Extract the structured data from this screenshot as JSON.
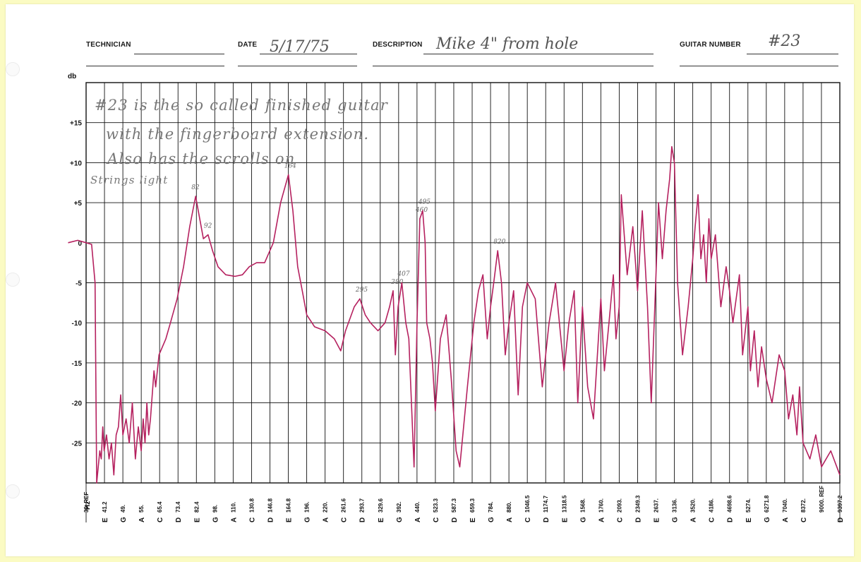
{
  "form": {
    "technician_label": "TECHNICIAN",
    "technician_value": "",
    "date_label": "DATE",
    "date_value": "5/17/75",
    "description_label": "DESCRIPTION",
    "description_value": "Mike 4\" from hole",
    "guitar_number_label": "GUITAR NUMBER",
    "guitar_number_value": "#23"
  },
  "notes": [
    "#23 is the so called finished guitar",
    "with the fingerboard extension.",
    "Also has the scrolls on",
    "Strings light"
  ],
  "colors": {
    "trace": "#b5215f",
    "grid": "#111111",
    "ink": "#777777",
    "paper": "#fbfbc3"
  },
  "chart_data": {
    "type": "line",
    "ylabel": "db",
    "xlabel": "Hz",
    "ylim": [
      -30,
      20
    ],
    "y_ticks": [
      15,
      10,
      5,
      0,
      -5,
      -10,
      -15,
      -20,
      -25
    ],
    "y_tick_labels": [
      "+15",
      "+10",
      "+5",
      "0",
      "-5",
      "-10",
      "-15",
      "-20",
      "-25"
    ],
    "x_ticks": [
      {
        "freq": "30. REF",
        "note": ""
      },
      {
        "freq": "41.2",
        "note": "E"
      },
      {
        "freq": "49.",
        "note": "G"
      },
      {
        "freq": "55.",
        "note": "A"
      },
      {
        "freq": "65.4",
        "note": "C"
      },
      {
        "freq": "73.4",
        "note": "D"
      },
      {
        "freq": "82.4",
        "note": "E"
      },
      {
        "freq": "98.",
        "note": "G"
      },
      {
        "freq": "110.",
        "note": "A"
      },
      {
        "freq": "130.8",
        "note": "C"
      },
      {
        "freq": "146.8",
        "note": "D"
      },
      {
        "freq": "164.8",
        "note": "E"
      },
      {
        "freq": "196.",
        "note": "G"
      },
      {
        "freq": "220.",
        "note": "A"
      },
      {
        "freq": "261.6",
        "note": "C"
      },
      {
        "freq": "293.7",
        "note": "D"
      },
      {
        "freq": "329.6",
        "note": "E"
      },
      {
        "freq": "392.",
        "note": "G"
      },
      {
        "freq": "440.",
        "note": "A"
      },
      {
        "freq": "523.3",
        "note": "C"
      },
      {
        "freq": "587.3",
        "note": "D"
      },
      {
        "freq": "659.3",
        "note": "E"
      },
      {
        "freq": "784.",
        "note": "G"
      },
      {
        "freq": "880.",
        "note": "A"
      },
      {
        "freq": "1046.5",
        "note": "C"
      },
      {
        "freq": "1174.7",
        "note": "D"
      },
      {
        "freq": "1318.5",
        "note": "E"
      },
      {
        "freq": "1568.",
        "note": "G"
      },
      {
        "freq": "1760.",
        "note": "A"
      },
      {
        "freq": "2093.",
        "note": "C"
      },
      {
        "freq": "2349.3",
        "note": "D"
      },
      {
        "freq": "2637.",
        "note": "E"
      },
      {
        "freq": "3136.",
        "note": "G"
      },
      {
        "freq": "3520.",
        "note": "A"
      },
      {
        "freq": "4186.",
        "note": "C"
      },
      {
        "freq": "4698.6",
        "note": "D"
      },
      {
        "freq": "5274.",
        "note": "E"
      },
      {
        "freq": "6271.8",
        "note": "G"
      },
      {
        "freq": "7040.",
        "note": "A"
      },
      {
        "freq": "8372.",
        "note": "C"
      },
      {
        "freq": "9000. REF",
        "note": ""
      },
      {
        "freq": "9397.2",
        "note": "D"
      }
    ],
    "series": [
      {
        "values": [
          [
            22,
            0
          ],
          [
            26,
            0.3
          ],
          [
            30,
            0
          ],
          [
            33,
            -0.2
          ],
          [
            35,
            -5
          ],
          [
            36,
            -30
          ],
          [
            37,
            -28
          ],
          [
            38,
            -26
          ],
          [
            39,
            -27
          ],
          [
            40,
            -23
          ],
          [
            41,
            -26
          ],
          [
            42,
            -24
          ],
          [
            43,
            -27
          ],
          [
            44,
            -25
          ],
          [
            45,
            -29
          ],
          [
            46,
            -24
          ],
          [
            47,
            -23
          ],
          [
            48,
            -19
          ],
          [
            49,
            -24
          ],
          [
            50,
            -22
          ],
          [
            51,
            -25
          ],
          [
            52,
            -20
          ],
          [
            53,
            -27
          ],
          [
            54,
            -23
          ],
          [
            55,
            -26
          ],
          [
            56,
            -22
          ],
          [
            57,
            -25
          ],
          [
            58,
            -20
          ],
          [
            59,
            -24
          ],
          [
            60,
            -22
          ],
          [
            61,
            -19
          ],
          [
            62,
            -16
          ],
          [
            63,
            -18
          ],
          [
            65,
            -14
          ],
          [
            68,
            -12
          ],
          [
            70,
            -10
          ],
          [
            73,
            -7
          ],
          [
            76,
            -3
          ],
          [
            79,
            2
          ],
          [
            82,
            5.8
          ],
          [
            85,
            3
          ],
          [
            88,
            0.5
          ],
          [
            92,
            1
          ],
          [
            96,
            -1
          ],
          [
            100,
            -3
          ],
          [
            105,
            -4
          ],
          [
            112,
            -4.2
          ],
          [
            120,
            -4
          ],
          [
            128,
            -3
          ],
          [
            135,
            -2.5
          ],
          [
            142,
            -2.5
          ],
          [
            150,
            0
          ],
          [
            157,
            5
          ],
          [
            165,
            8.5
          ],
          [
            172,
            4
          ],
          [
            180,
            -3
          ],
          [
            188,
            -6
          ],
          [
            196,
            -9
          ],
          [
            206,
            -10.5
          ],
          [
            220,
            -11
          ],
          [
            240,
            -12
          ],
          [
            255,
            -13.5
          ],
          [
            265,
            -11
          ],
          [
            280,
            -8
          ],
          [
            290,
            -7
          ],
          [
            300,
            -9
          ],
          [
            310,
            -10
          ],
          [
            325,
            -11
          ],
          [
            345,
            -10
          ],
          [
            360,
            -8
          ],
          [
            372,
            -6
          ],
          [
            380,
            -14
          ],
          [
            390,
            -8
          ],
          [
            400,
            -5
          ],
          [
            410,
            -10
          ],
          [
            418,
            -12
          ],
          [
            432,
            -28
          ],
          [
            440,
            -10
          ],
          [
            452,
            3
          ],
          [
            464,
            4
          ],
          [
            475,
            0
          ],
          [
            482,
            -10
          ],
          [
            497,
            -12
          ],
          [
            509,
            -15
          ],
          [
            523,
            -21
          ],
          [
            540,
            -12
          ],
          [
            560,
            -9
          ],
          [
            578,
            -17
          ],
          [
            596,
            -26
          ],
          [
            610,
            -28
          ],
          [
            640,
            -18
          ],
          [
            670,
            -10
          ],
          [
            700,
            -6
          ],
          [
            730,
            -4
          ],
          [
            760,
            -12
          ],
          [
            784,
            -8
          ],
          [
            800,
            -5
          ],
          [
            820,
            -1
          ],
          [
            840,
            -5
          ],
          [
            860,
            -14
          ],
          [
            880,
            -10
          ],
          [
            920,
            -6
          ],
          [
            960,
            -19
          ],
          [
            1000,
            -8
          ],
          [
            1046,
            -5
          ],
          [
            1100,
            -7
          ],
          [
            1150,
            -18
          ],
          [
            1200,
            -10
          ],
          [
            1250,
            -5
          ],
          [
            1318,
            -16
          ],
          [
            1380,
            -10
          ],
          [
            1450,
            -6
          ],
          [
            1500,
            -20
          ],
          [
            1568,
            -8
          ],
          [
            1620,
            -18
          ],
          [
            1680,
            -22
          ],
          [
            1760,
            -7
          ],
          [
            1820,
            -16
          ],
          [
            1900,
            -10
          ],
          [
            1980,
            -4
          ],
          [
            2030,
            -12
          ],
          [
            2093,
            -8
          ],
          [
            2120,
            6
          ],
          [
            2200,
            -4
          ],
          [
            2280,
            2
          ],
          [
            2349,
            -6
          ],
          [
            2420,
            4
          ],
          [
            2500,
            -8
          ],
          [
            2560,
            -20
          ],
          [
            2637,
            -4
          ],
          [
            2700,
            5
          ],
          [
            2800,
            -2
          ],
          [
            2900,
            4
          ],
          [
            3000,
            8
          ],
          [
            3060,
            12
          ],
          [
            3136,
            10
          ],
          [
            3200,
            -5
          ],
          [
            3300,
            -14
          ],
          [
            3420,
            -8
          ],
          [
            3520,
            -2
          ],
          [
            3600,
            2
          ],
          [
            3700,
            6
          ],
          [
            3800,
            -2
          ],
          [
            3900,
            1
          ],
          [
            4000,
            -5
          ],
          [
            4100,
            3
          ],
          [
            4186,
            -2
          ],
          [
            4300,
            1
          ],
          [
            4450,
            -8
          ],
          [
            4600,
            -3
          ],
          [
            4698,
            -6
          ],
          [
            4800,
            -10
          ],
          [
            5000,
            -4
          ],
          [
            5100,
            -14
          ],
          [
            5274,
            -8
          ],
          [
            5400,
            -16
          ],
          [
            5600,
            -11
          ],
          [
            5800,
            -18
          ],
          [
            6000,
            -13
          ],
          [
            6271,
            -17
          ],
          [
            6500,
            -20
          ],
          [
            6800,
            -14
          ],
          [
            7040,
            -16
          ],
          [
            7300,
            -22
          ],
          [
            7600,
            -19
          ],
          [
            7900,
            -24
          ],
          [
            8100,
            -18
          ],
          [
            8372,
            -25
          ],
          [
            8600,
            -27
          ],
          [
            8800,
            -24
          ],
          [
            9000,
            -28
          ],
          [
            9200,
            -26
          ],
          [
            9397,
            -29
          ]
        ]
      }
    ],
    "annotations": [
      {
        "text": "82",
        "x": 82,
        "y": 5.8
      },
      {
        "text": "92",
        "x": 92,
        "y": 1
      },
      {
        "text": "164",
        "x": 165,
        "y": 8.5
      },
      {
        "text": "295",
        "x": 290,
        "y": -7
      },
      {
        "text": "380",
        "x": 380,
        "y": -6
      },
      {
        "text": "407",
        "x": 400,
        "y": -5
      },
      {
        "text": "460",
        "x": 452,
        "y": 3
      },
      {
        "text": "495",
        "x": 464,
        "y": 4
      },
      {
        "text": "820",
        "x": 820,
        "y": -1
      }
    ],
    "grid": true
  }
}
